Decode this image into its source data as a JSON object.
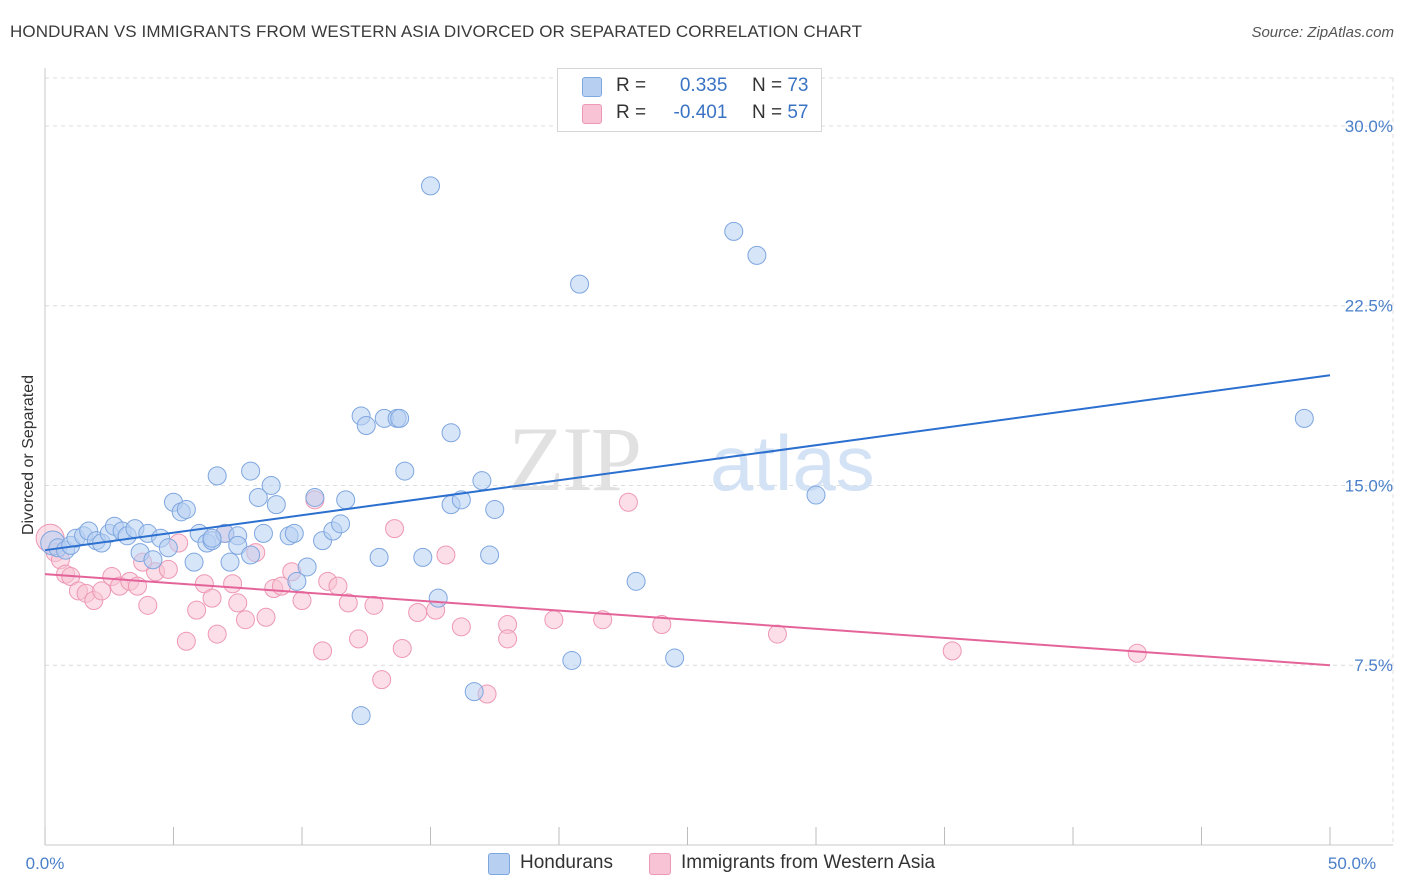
{
  "title": "HONDURAN VS IMMIGRANTS FROM WESTERN ASIA DIVORCED OR SEPARATED CORRELATION CHART",
  "source": "Source: ZipAtlas.com",
  "watermark": {
    "zip": "ZIP",
    "atlas": "atlas"
  },
  "legend_top": [
    {
      "r_label": "R =",
      "r_value": "0.335",
      "n_label": "N =",
      "n_value": "73"
    },
    {
      "r_label": "R =",
      "r_value": "-0.401",
      "n_label": "N =",
      "n_value": "57"
    }
  ],
  "colors": {
    "hondurans_fill": "#b7d0f2",
    "hondurans_stroke": "#7ea6df",
    "hondurans_line": "#2b6fcf",
    "western_asia_fill": "#f8c3d4",
    "western_asia_stroke": "#ee98b4",
    "western_asia_line": "#e4649a",
    "grid": "#dcdcdc",
    "tick_label": "#4a7fc9"
  },
  "chart_data": {
    "type": "scatter",
    "ylabel": "Divorced or Separated",
    "xlim": [
      0,
      50
    ],
    "ylim": [
      0,
      32
    ],
    "x_tick_labels": [
      "0.0%",
      "50.0%"
    ],
    "y_ticks": [
      7.5,
      15.0,
      22.5,
      30.0
    ],
    "y_tick_labels": [
      "7.5%",
      "15.0%",
      "22.5%",
      "30.0%"
    ],
    "grid": true,
    "legend_position": "top-center",
    "series": [
      {
        "name": "Hondurans",
        "r": 0.335,
        "n": 73,
        "trend": [
          [
            0,
            12.3
          ],
          [
            50,
            19.6
          ]
        ],
        "points": [
          [
            0.3,
            12.6
          ],
          [
            0.5,
            12.4
          ],
          [
            0.8,
            12.3
          ],
          [
            1.0,
            12.5
          ],
          [
            1.2,
            12.8
          ],
          [
            1.5,
            12.9
          ],
          [
            1.7,
            13.1
          ],
          [
            2.0,
            12.7
          ],
          [
            2.2,
            12.6
          ],
          [
            2.5,
            13.0
          ],
          [
            2.7,
            13.3
          ],
          [
            3.0,
            13.1
          ],
          [
            3.2,
            12.9
          ],
          [
            3.5,
            13.2
          ],
          [
            3.7,
            12.2
          ],
          [
            4.0,
            13.0
          ],
          [
            4.2,
            11.9
          ],
          [
            4.5,
            12.8
          ],
          [
            4.8,
            12.4
          ],
          [
            5.0,
            14.3
          ],
          [
            5.3,
            13.9
          ],
          [
            5.5,
            14.0
          ],
          [
            5.8,
            11.8
          ],
          [
            6.0,
            13.0
          ],
          [
            6.3,
            12.6
          ],
          [
            6.5,
            12.7
          ],
          [
            6.7,
            15.4
          ],
          [
            7.0,
            13.0
          ],
          [
            7.2,
            11.8
          ],
          [
            7.5,
            12.9
          ],
          [
            7.5,
            12.5
          ],
          [
            8.0,
            15.6
          ],
          [
            8.3,
            14.5
          ],
          [
            8.0,
            12.1
          ],
          [
            8.8,
            15.0
          ],
          [
            9.0,
            14.2
          ],
          [
            9.5,
            12.9
          ],
          [
            9.7,
            13.0
          ],
          [
            9.8,
            11.0
          ],
          [
            10.2,
            11.6
          ],
          [
            10.5,
            14.5
          ],
          [
            10.8,
            12.7
          ],
          [
            11.2,
            13.1
          ],
          [
            11.5,
            13.4
          ],
          [
            11.7,
            14.4
          ],
          [
            12.3,
            17.9
          ],
          [
            12.5,
            17.5
          ],
          [
            13.0,
            12.0
          ],
          [
            13.2,
            17.8
          ],
          [
            13.7,
            17.8
          ],
          [
            13.8,
            17.8
          ],
          [
            14.0,
            15.6
          ],
          [
            14.7,
            12.0
          ],
          [
            15.3,
            10.3
          ],
          [
            15.8,
            17.2
          ],
          [
            15.8,
            14.2
          ],
          [
            16.2,
            14.4
          ],
          [
            16.7,
            6.4
          ],
          [
            17.0,
            15.2
          ],
          [
            17.3,
            12.1
          ],
          [
            17.5,
            14.0
          ],
          [
            15.0,
            27.5
          ],
          [
            20.5,
            7.7
          ],
          [
            20.8,
            23.4
          ],
          [
            23.0,
            11.0
          ],
          [
            24.5,
            7.8
          ],
          [
            26.8,
            25.6
          ],
          [
            27.7,
            24.6
          ],
          [
            30.0,
            14.6
          ],
          [
            49.0,
            17.8
          ],
          [
            12.3,
            5.4
          ],
          [
            8.5,
            13.0
          ],
          [
            6.5,
            12.8
          ]
        ]
      },
      {
        "name": "Immigrants from Western Asia",
        "r": -0.401,
        "n": 57,
        "trend": [
          [
            0,
            11.3
          ],
          [
            50,
            7.5
          ]
        ],
        "points": [
          [
            0.2,
            12.8
          ],
          [
            0.4,
            12.2
          ],
          [
            0.6,
            11.9
          ],
          [
            0.8,
            11.3
          ],
          [
            1.0,
            11.2
          ],
          [
            1.3,
            10.6
          ],
          [
            1.6,
            10.5
          ],
          [
            1.9,
            10.2
          ],
          [
            2.2,
            10.6
          ],
          [
            2.6,
            11.2
          ],
          [
            2.9,
            10.8
          ],
          [
            3.3,
            11.0
          ],
          [
            3.6,
            10.8
          ],
          [
            4.0,
            10.0
          ],
          [
            4.3,
            11.4
          ],
          [
            4.8,
            11.5
          ],
          [
            5.2,
            12.6
          ],
          [
            5.5,
            8.5
          ],
          [
            5.9,
            9.8
          ],
          [
            6.2,
            10.9
          ],
          [
            6.5,
            10.3
          ],
          [
            6.7,
            8.8
          ],
          [
            7.0,
            13.0
          ],
          [
            7.3,
            10.9
          ],
          [
            7.5,
            10.1
          ],
          [
            7.8,
            9.4
          ],
          [
            8.2,
            12.2
          ],
          [
            8.6,
            9.5
          ],
          [
            8.9,
            10.7
          ],
          [
            9.2,
            10.8
          ],
          [
            10.0,
            10.2
          ],
          [
            10.5,
            14.4
          ],
          [
            10.8,
            8.1
          ],
          [
            11.0,
            11.0
          ],
          [
            11.4,
            10.8
          ],
          [
            11.8,
            10.1
          ],
          [
            12.2,
            8.6
          ],
          [
            12.8,
            10.0
          ],
          [
            13.1,
            6.9
          ],
          [
            13.6,
            13.2
          ],
          [
            13.9,
            8.2
          ],
          [
            14.5,
            9.7
          ],
          [
            15.2,
            9.8
          ],
          [
            15.6,
            12.1
          ],
          [
            16.2,
            9.1
          ],
          [
            17.2,
            6.3
          ],
          [
            18.0,
            9.2
          ],
          [
            18.0,
            8.6
          ],
          [
            19.8,
            9.4
          ],
          [
            21.7,
            9.4
          ],
          [
            22.7,
            14.3
          ],
          [
            24.0,
            9.2
          ],
          [
            28.5,
            8.8
          ],
          [
            35.3,
            8.1
          ],
          [
            42.5,
            8.0
          ],
          [
            9.6,
            11.4
          ],
          [
            3.8,
            11.8
          ]
        ]
      }
    ]
  },
  "bottom_legend": [
    {
      "label": "Hondurans"
    },
    {
      "label": "Immigrants from Western Asia"
    }
  ]
}
